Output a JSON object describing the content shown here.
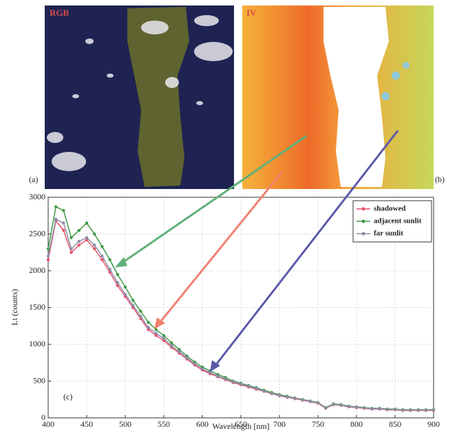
{
  "images": [
    {
      "label": "(a)",
      "title": "RGB"
    },
    {
      "label": "(b)",
      "title": "IV"
    }
  ],
  "chart_data": {
    "type": "line",
    "panel_label": "(c)",
    "xlabel": "Wavelength [nm]",
    "ylabel": "Lt (counts)",
    "x": [
      400,
      410,
      420,
      430,
      440,
      450,
      460,
      470,
      480,
      490,
      500,
      510,
      520,
      530,
      540,
      550,
      560,
      570,
      580,
      590,
      600,
      610,
      620,
      630,
      640,
      650,
      660,
      670,
      680,
      690,
      700,
      710,
      720,
      730,
      740,
      750,
      760,
      770,
      780,
      790,
      800,
      810,
      820,
      830,
      840,
      850,
      860,
      870,
      880,
      890,
      900
    ],
    "series": [
      {
        "name": "shadowed",
        "color": "#e8506a",
        "values": [
          2150,
          2680,
          2550,
          2250,
          2350,
          2420,
          2300,
          2150,
          1980,
          1800,
          1650,
          1500,
          1350,
          1200,
          1120,
          1050,
          960,
          880,
          800,
          720,
          650,
          600,
          560,
          520,
          480,
          450,
          420,
          390,
          360,
          330,
          300,
          280,
          260,
          240,
          220,
          200,
          130,
          180,
          170,
          150,
          140,
          130,
          120,
          120,
          110,
          110,
          100,
          100,
          100,
          100,
          100
        ]
      },
      {
        "name": "adjacent sunlit",
        "color": "#3f9a45",
        "values": [
          2300,
          2870,
          2820,
          2450,
          2550,
          2650,
          2500,
          2330,
          2150,
          1950,
          1780,
          1600,
          1450,
          1300,
          1200,
          1120,
          1020,
          930,
          840,
          760,
          690,
          640,
          590,
          550,
          500,
          470,
          440,
          410,
          375,
          345,
          315,
          295,
          270,
          250,
          230,
          210,
          140,
          190,
          180,
          160,
          150,
          140,
          130,
          130,
          120,
          120,
          110,
          110,
          110,
          110,
          110
        ]
      },
      {
        "name": "far sunlit",
        "color": "#8c8ca8",
        "values": [
          2200,
          2700,
          2650,
          2300,
          2400,
          2450,
          2350,
          2200,
          2020,
          1840,
          1680,
          1530,
          1380,
          1230,
          1150,
          1080,
          980,
          900,
          815,
          735,
          665,
          615,
          570,
          530,
          490,
          460,
          430,
          400,
          365,
          335,
          305,
          285,
          265,
          245,
          225,
          205,
          135,
          185,
          175,
          155,
          145,
          135,
          125,
          125,
          115,
          115,
          105,
          105,
          105,
          105,
          105
        ]
      }
    ],
    "xlim": [
      400,
      900
    ],
    "xticks": [
      400,
      450,
      500,
      550,
      600,
      650,
      700,
      750,
      800,
      850,
      900
    ],
    "ylim": [
      0,
      3000
    ],
    "yticks": [
      0,
      500,
      1000,
      1500,
      2000,
      2500,
      3000
    ],
    "grid": true,
    "legend": "upper right"
  }
}
